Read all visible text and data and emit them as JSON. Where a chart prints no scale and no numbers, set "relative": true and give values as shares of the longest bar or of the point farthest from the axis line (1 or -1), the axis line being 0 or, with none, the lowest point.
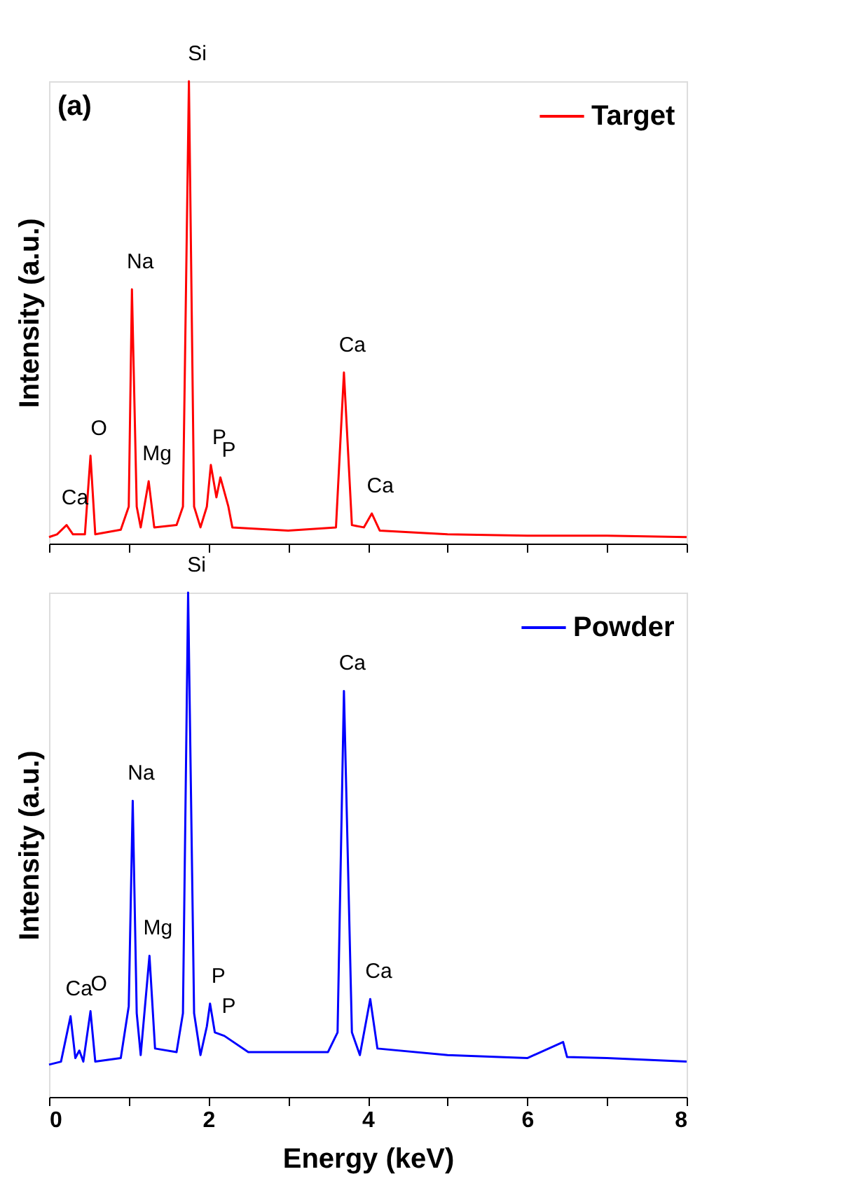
{
  "chart_data": [
    {
      "type": "line",
      "relative": true,
      "ylabel": "Intensity (a.u.)",
      "xlim": [
        0,
        8
      ],
      "xticks": [
        {
          "value": 0,
          "label": null
        },
        {
          "value": 1,
          "label": null
        },
        {
          "value": 2,
          "label": null
        },
        {
          "value": 3,
          "label": null
        },
        {
          "value": 4,
          "label": null
        },
        {
          "value": 5,
          "label": null
        },
        {
          "value": 6,
          "label": null
        },
        {
          "value": 7,
          "label": null
        },
        {
          "value": 8,
          "label": null
        }
      ],
      "tick_labels": false,
      "legend": "top right",
      "grid": false,
      "series": [
        {
          "name": "Target",
          "color": "#ff0000",
          "x": [
            0,
            0.1,
            0.22,
            0.3,
            0.45,
            0.52,
            0.58,
            0.9,
            1.0,
            1.04,
            1.1,
            1.15,
            1.25,
            1.32,
            1.6,
            1.68,
            1.755,
            1.82,
            1.9,
            1.98,
            2.03,
            2.1,
            2.15,
            2.25,
            2.3,
            3.0,
            3.6,
            3.7,
            3.8,
            3.95,
            4.05,
            4.15,
            5,
            6,
            7,
            8
          ],
          "values": [
            0.014,
            0.02,
            0.04,
            0.02,
            0.02,
            0.19,
            0.02,
            0.03,
            0.08,
            0.55,
            0.08,
            0.035,
            0.135,
            0.035,
            0.04,
            0.08,
            1.0,
            0.08,
            0.035,
            0.08,
            0.17,
            0.1,
            0.143,
            0.08,
            0.035,
            0.028,
            0.035,
            0.37,
            0.04,
            0.035,
            0.065,
            0.028,
            0.02,
            0.017,
            0.017,
            0.014
          ]
        }
      ],
      "annotations": [
        "(a)",
        {
          "text": "Ca",
          "x": 0.22,
          "y": 0.04
        },
        {
          "text": "O",
          "x": 0.52,
          "y": 0.19
        },
        {
          "text": "Na",
          "x": 1.04,
          "y": 0.55
        },
        {
          "text": "Mg",
          "x": 1.25,
          "y": 0.135
        },
        {
          "text": "Si",
          "x": 1.755,
          "y": 1.0
        },
        {
          "text": "P",
          "x": 2.03,
          "y": 0.17
        },
        {
          "text": "P",
          "x": 2.15,
          "y": 0.143
        },
        {
          "text": "Ca",
          "x": 3.7,
          "y": 0.37
        },
        {
          "text": "Ca",
          "x": 4.05,
          "y": 0.065
        }
      ]
    },
    {
      "type": "line",
      "relative": true,
      "ylabel": "Intensity (a.u.)",
      "xlabel": "Energy (keV)",
      "xlim": [
        0,
        8
      ],
      "xticks": [
        0,
        {
          "value": 1,
          "label": null
        },
        2,
        {
          "value": 3,
          "label": null
        },
        4,
        {
          "value": 5,
          "label": null
        },
        6,
        {
          "value": 7,
          "label": null
        },
        8
      ],
      "tick_labels": "x",
      "legend": "top right",
      "grid": false,
      "series": [
        {
          "name": "Powder",
          "color": "#0000ff",
          "x": [
            0,
            0.15,
            0.27,
            0.33,
            0.38,
            0.43,
            0.52,
            0.58,
            0.9,
            1.0,
            1.05,
            1.1,
            1.15,
            1.26,
            1.33,
            1.6,
            1.68,
            1.745,
            1.82,
            1.9,
            1.98,
            2.02,
            2.08,
            2.2,
            2.5,
            3.0,
            3.5,
            3.62,
            3.7,
            3.8,
            3.9,
            4.03,
            4.12,
            5,
            6,
            6.45,
            6.5,
            7,
            8
          ],
          "values": [
            0.064,
            0.07,
            0.16,
            0.077,
            0.092,
            0.07,
            0.17,
            0.07,
            0.077,
            0.18,
            0.587,
            0.166,
            0.083,
            0.28,
            0.096,
            0.089,
            0.166,
            1.0,
            0.166,
            0.083,
            0.14,
            0.185,
            0.128,
            0.121,
            0.089,
            0.089,
            0.089,
            0.128,
            0.805,
            0.128,
            0.083,
            0.194,
            0.096,
            0.083,
            0.077,
            0.109,
            0.079,
            0.077,
            0.07
          ]
        }
      ],
      "annotations": [
        {
          "text": "Ca",
          "x": 0.27,
          "y": 0.16
        },
        {
          "text": "O",
          "x": 0.52,
          "y": 0.17
        },
        {
          "text": "Na",
          "x": 1.05,
          "y": 0.587
        },
        {
          "text": "Mg",
          "x": 1.26,
          "y": 0.28
        },
        {
          "text": "Si",
          "x": 1.745,
          "y": 1.0
        },
        {
          "text": "P",
          "x": 2.02,
          "y": 0.185
        },
        {
          "text": "P",
          "x": 2.15,
          "y": 0.125
        },
        {
          "text": "Ca",
          "x": 3.7,
          "y": 0.805
        },
        {
          "text": "Ca",
          "x": 4.03,
          "y": 0.194
        }
      ]
    }
  ]
}
